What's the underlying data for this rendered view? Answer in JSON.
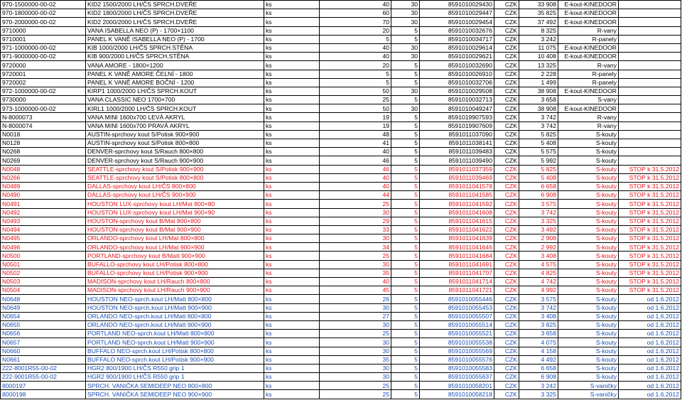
{
  "colors": {
    "black": "#000000",
    "red": "#e8141c",
    "blue": "#1a4fb8"
  },
  "rows": [
    {
      "code": "970-1500000-00-02",
      "name": "KID2 1500/2000 LH/ČS SPRCH.DVEŘE",
      "unit": "ks",
      "qty": "40",
      "pack": "30",
      "ean": "8591010029430",
      "cur": "CZK",
      "price": "33 908",
      "cat": "E-kout-KINEDOOR",
      "note": "",
      "color": "black"
    },
    {
      "code": "970-1800000-00-02",
      "name": "KID2 1800/2000 LH/ČS SPRCH.DVEŘE",
      "unit": "ks",
      "qty": "60",
      "pack": "30",
      "ean": "8591010029447",
      "cur": "CZK",
      "price": "35 825",
      "cat": "E-kout-KINEDOOR",
      "note": "",
      "color": "black"
    },
    {
      "code": "970-2000000-00-02",
      "name": "KID2 2000/2000 LH/ČS SPRCH.DVEŘE",
      "unit": "ks",
      "qty": "70",
      "pack": "30",
      "ean": "8591010029454",
      "cur": "CZK",
      "price": "37 492",
      "cat": "E-kout-KINEDOOR",
      "note": "",
      "color": "black"
    },
    {
      "code": "9710000",
      "name": "VANA ISABELLA NEO (P) - 1700×1100",
      "unit": "ks",
      "qty": "20",
      "pack": "5",
      "ean": "8591010032676",
      "cur": "CZK",
      "price": "8 325",
      "cat": "R-vany",
      "note": "",
      "color": "black"
    },
    {
      "code": "9710001",
      "name": "PANEL K VANĚ ISABELLA NEO (P) - 1700",
      "unit": "ks",
      "qty": "5",
      "pack": "5",
      "ean": "8591010034717",
      "cur": "CZK",
      "price": "3 242",
      "cat": "R-panely",
      "note": "",
      "color": "black"
    },
    {
      "code": "971-1000000-00-02",
      "name": "KIB 1000/2000 LH/ČS SPRCH.STĚNA",
      "unit": "ks",
      "qty": "40",
      "pack": "30",
      "ean": "8591010029614",
      "cur": "CZK",
      "price": "11 075",
      "cat": "E-kout-KINEDOOR",
      "note": "",
      "color": "black"
    },
    {
      "code": "971-9000000-00-02",
      "name": "KIB 900/2000 LH/ČS SPRCH.STĚNA",
      "unit": "ks",
      "qty": "40",
      "pack": "30",
      "ean": "8591010029621",
      "cur": "CZK",
      "price": "10 408",
      "cat": "E-kout-KINEDOOR",
      "note": "",
      "color": "black"
    },
    {
      "code": "9720000",
      "name": "VANA AMORE - 1800×1200",
      "unit": "ks",
      "qty": "20",
      "pack": "5",
      "ean": "8591010032690",
      "cur": "CZK",
      "price": "13 325",
      "cat": "R-vany",
      "note": "",
      "color": "black"
    },
    {
      "code": "9720001",
      "name": "PANEL K VANĚ AMORE ČELNÍ - 1800",
      "unit": "ks",
      "qty": "5",
      "pack": "5",
      "ean": "8591010026910",
      "cur": "CZK",
      "price": "2 228",
      "cat": "R-panely",
      "note": "",
      "color": "black"
    },
    {
      "code": "9720002",
      "name": "PANEL K VANĚ AMORE BOČNÍ - 1200",
      "unit": "ks",
      "qty": "5",
      "pack": "5",
      "ean": "8591010032706",
      "cur": "CZK",
      "price": "1 499",
      "cat": "R-panely",
      "note": "",
      "color": "black"
    },
    {
      "code": "972-1000000-00-02",
      "name": "KIRP1 1000/2000 LH/ČS SPRCH.KOUT",
      "unit": "ks",
      "qty": "50",
      "pack": "30",
      "ean": "8591010029508",
      "cur": "CZK",
      "price": "38 908",
      "cat": "E-kout-KINEDOOR",
      "note": "",
      "color": "black"
    },
    {
      "code": "9730000",
      "name": "VANA CLASSIC NEO 1700×700",
      "unit": "ks",
      "qty": "25",
      "pack": "5",
      "ean": "8591010032713",
      "cur": "CZK",
      "price": "3 658",
      "cat": "S-vany",
      "note": "",
      "color": "black"
    },
    {
      "code": "973-1000000-00-02",
      "name": "KIRL1 1000/2000 LH/ČS SPRCH.KOUT",
      "unit": "ks",
      "qty": "50",
      "pack": "30",
      "ean": "8591010049247",
      "cur": "CZK",
      "price": "38 908",
      "cat": "E-kout-KINEDOOR",
      "note": "",
      "color": "black"
    },
    {
      "code": "N-8000073",
      "name": "VANA MINI 1600x700 LEVÁ AKRYL",
      "unit": "ks",
      "qty": "19",
      "pack": "5",
      "ean": "8591019907593",
      "cur": "CZK",
      "price": "3 742",
      "cat": "R-vany",
      "note": "",
      "color": "black"
    },
    {
      "code": "N-8000074",
      "name": "VANA MINI 1600x700 PRAVÁ AKRYL",
      "unit": "ks",
      "qty": "19",
      "pack": "5",
      "ean": "8591019907609",
      "cur": "CZK",
      "price": "3 742",
      "cat": "R-vany",
      "note": "",
      "color": "black"
    },
    {
      "code": "N0018",
      "name": "AUSTIN-sprchovy kout S/Potisk 900×900",
      "unit": "ks",
      "qty": "48",
      "pack": "5",
      "ean": "8591011037090",
      "cur": "CZK",
      "price": "5 825",
      "cat": "S-kouty",
      "note": "",
      "color": "black"
    },
    {
      "code": "N0128",
      "name": "AUSTIN-sprchovy kout S/Potisk 800×800",
      "unit": "ks",
      "qty": "41",
      "pack": "5",
      "ean": "8591011038141",
      "cur": "CZK",
      "price": "5 408",
      "cat": "S-kouty",
      "note": "",
      "color": "black"
    },
    {
      "code": "N0268",
      "name": "DENVER-sprchovy kout S/Rauch 800×800",
      "unit": "ks",
      "qty": "40",
      "pack": "5",
      "ean": "8591011039483",
      "cur": "CZK",
      "price": "5 575",
      "cat": "S-kouty",
      "note": "",
      "color": "black"
    },
    {
      "code": "N0269",
      "name": "DENVER-sprchovy kout S/Rauch 900×900",
      "unit": "ks",
      "qty": "46",
      "pack": "5",
      "ean": "8591011039490",
      "cur": "CZK",
      "price": "5 992",
      "cat": "S-kouty",
      "note": "",
      "color": "black"
    },
    {
      "code": "N0048",
      "name": "SEATTLE-sprchovy kout S/Potisk 900×900",
      "unit": "ks",
      "qty": "46",
      "pack": "5",
      "ean": "8591011037359",
      "cur": "CZK",
      "price": "5 825",
      "cat": "S-kouty",
      "note": "STOP k 31.5.2012",
      "color": "red"
    },
    {
      "code": "N0266",
      "name": "SEATTLE-sprchovy kout S/Potisk 800×800",
      "unit": "ks",
      "qty": "40",
      "pack": "5",
      "ean": "8591011039469",
      "cur": "CZK",
      "price": "5 408",
      "cat": "S-kouty",
      "note": "STOP k 31.5.2012",
      "color": "red"
    },
    {
      "code": "N0489",
      "name": "DALLAS-sprchovy kout LH/ČS 800×800",
      "unit": "ks",
      "qty": "40",
      "pack": "5",
      "ean": "8591011041578",
      "cur": "CZK",
      "price": "6 658",
      "cat": "S-kouty",
      "note": "STOP k 31.5.2012",
      "color": "red"
    },
    {
      "code": "N0490",
      "name": "DALLAS-sprchovy kout LH/ČS 900×900",
      "unit": "ks",
      "qty": "44",
      "pack": "5",
      "ean": "8591011041585",
      "cur": "CZK",
      "price": "6 908",
      "cat": "S-kouty",
      "note": "STOP k 31.5.2012",
      "color": "red"
    },
    {
      "code": "N0491",
      "name": "HOUSTON LUX-sprchovy kout LH/Mat 800×80",
      "unit": "ks",
      "qty": "25",
      "pack": "5",
      "ean": "8591011041592",
      "cur": "CZK",
      "price": "3 575",
      "cat": "S-kouty",
      "note": "STOP k 31.5.2012",
      "color": "red"
    },
    {
      "code": "N0492",
      "name": "HOUSTON LUX-sprchovy kout LH/Mat 900×90",
      "unit": "ks",
      "qty": "30",
      "pack": "5",
      "ean": "8591011041608",
      "cur": "CZK",
      "price": "3 742",
      "cat": "S-kouty",
      "note": "STOP k 31.5.2012",
      "color": "red"
    },
    {
      "code": "N0493",
      "name": "HOUSTON-sprchovy kout B/Mat 800×800",
      "unit": "ks",
      "qty": "29",
      "pack": "5",
      "ean": "8591011041615",
      "cur": "CZK",
      "price": "3 325",
      "cat": "S-kouty",
      "note": "STOP k 31.5.2012",
      "color": "red"
    },
    {
      "code": "N0494",
      "name": "HOUSTON-sprchovy kout B/Mat 900×900",
      "unit": "ks",
      "qty": "33",
      "pack": "5",
      "ean": "8591011041622",
      "cur": "CZK",
      "price": "3 492",
      "cat": "S-kouty",
      "note": "STOP k 31.5.2012",
      "color": "red"
    },
    {
      "code": "N0495",
      "name": "ORLANDO-sprchovy kout LH/Mat 800×800",
      "unit": "ks",
      "qty": "30",
      "pack": "5",
      "ean": "8591011041639",
      "cur": "CZK",
      "price": "2 908",
      "cat": "S-kouty",
      "note": "STOP k 31.5.2012",
      "color": "red"
    },
    {
      "code": "N0496",
      "name": "ORLANDO-sprchovy kout LH/Mat 900×900",
      "unit": "ks",
      "qty": "34",
      "pack": "5",
      "ean": "8591011041646",
      "cur": "CZK",
      "price": "2 992",
      "cat": "S-kouty",
      "note": "STOP k 31.5.2012",
      "color": "red"
    },
    {
      "code": "N0500",
      "name": "PORTLAND-sprchovy kout B/Matt 900×900",
      "unit": "ks",
      "qty": "25",
      "pack": "5",
      "ean": "8591011041684",
      "cur": "CZK",
      "price": "3 408",
      "cat": "S-kouty",
      "note": "STOP k 31.5.2012",
      "color": "red"
    },
    {
      "code": "N0501",
      "name": "BUFALLO-sprchovy kout LH/Potisk 800×800",
      "unit": "ks",
      "qty": "30",
      "pack": "5",
      "ean": "8591011041691",
      "cur": "CZK",
      "price": "4 575",
      "cat": "S-kouty",
      "note": "STOP k 31.5.2012",
      "color": "red"
    },
    {
      "code": "N0502",
      "name": "BUFALLO-sprchovy kout LH/Potisk 900×900",
      "unit": "ks",
      "qty": "35",
      "pack": "5",
      "ean": "8591011041707",
      "cur": "CZK",
      "price": "4 825",
      "cat": "S-kouty",
      "note": "STOP k 31.5.2012",
      "color": "red"
    },
    {
      "code": "N0503",
      "name": "MADISON-sprchovy kout LH/Rauch 800×800",
      "unit": "ks",
      "qty": "40",
      "pack": "5",
      "ean": "8591011041714",
      "cur": "CZK",
      "price": "4 742",
      "cat": "S-kouty",
      "note": "STOP k 31.5.2012",
      "color": "red"
    },
    {
      "code": "N0504",
      "name": "MADISON-sprchovy kout LH/Rauch 900×900",
      "unit": "ks",
      "qty": "45",
      "pack": "5",
      "ean": "8591011041721",
      "cur": "CZK",
      "price": "4 992",
      "cat": "S-kouty",
      "note": "STOP k 31.5.2012",
      "color": "red"
    },
    {
      "code": "N0648",
      "name": "HOUSTON NEO-sprch.kout LH/Matt 800×800",
      "unit": "ks",
      "qty": "26",
      "pack": "5",
      "ean": "8591010055446",
      "cur": "CZK",
      "price": "3 575",
      "cat": "S-kouty",
      "note": "od 1.6.2012",
      "color": "blue"
    },
    {
      "code": "N0649",
      "name": "HOUSTON NEO-sprch.kout LH/Matt 900×900",
      "unit": "ks",
      "qty": "30",
      "pack": "5",
      "ean": "8591010055453",
      "cur": "CZK",
      "price": "3 742",
      "cat": "S-kouty",
      "note": "od 1.6.2012",
      "color": "blue"
    },
    {
      "code": "N0654",
      "name": "ORLANDO NEO-sprch.kout LH/Matt 800×800",
      "unit": "ks",
      "qty": "27",
      "pack": "5",
      "ean": "8591010055507",
      "cur": "CZK",
      "price": "3 408",
      "cat": "S-kouty",
      "note": "od 1.6.2012",
      "color": "blue"
    },
    {
      "code": "N0655",
      "name": "ORLANDO NEO-sprch.kout LH/Matt 900×900",
      "unit": "ks",
      "qty": "30",
      "pack": "5",
      "ean": "8591010055514",
      "cur": "CZK",
      "price": "3 825",
      "cat": "S-kouty",
      "note": "od 1.6.2012",
      "color": "blue"
    },
    {
      "code": "N0656",
      "name": "PORTLAND NEO-sprch.kout LH/Matt 800×800",
      "unit": "ks",
      "qty": "25",
      "pack": "5",
      "ean": "8591010055521",
      "cur": "CZK",
      "price": "3 658",
      "cat": "S-kouty",
      "note": "od 1.6.2012",
      "color": "blue"
    },
    {
      "code": "N0657",
      "name": "PORTLAND NEO-sprch.kout LH/Matt 900×900",
      "unit": "ks",
      "qty": "30",
      "pack": "5",
      "ean": "8591010055538",
      "cur": "CZK",
      "price": "4 075",
      "cat": "S-kouty",
      "note": "od 1.6.2012",
      "color": "blue"
    },
    {
      "code": "N0660",
      "name": "BUFFALO NEO-sprch.kout LH/Potisk 800×800",
      "unit": "ks",
      "qty": "30",
      "pack": "5",
      "ean": "8591010055569",
      "cur": "CZK",
      "price": "4 158",
      "cat": "S-kouty",
      "note": "od 1.6.2012",
      "color": "blue"
    },
    {
      "code": "N0661",
      "name": "BUFFALO NEO-sprch.kout LH/Potisk 900×900",
      "unit": "ks",
      "qty": "35",
      "pack": "5",
      "ean": "8591010055576",
      "cur": "CZK",
      "price": "4 492",
      "cat": "S-kouty",
      "note": "od 1.6.2012",
      "color": "blue"
    },
    {
      "code": "222-8001R55-00-02",
      "name": "HGR2 800/1900 LH/ČS R550 grip 1",
      "unit": "ks",
      "qty": "30",
      "pack": "5",
      "ean": "8591010055583",
      "cur": "CZK",
      "price": "6 658",
      "cat": "S-kouty",
      "note": "od 1.6.2012",
      "color": "blue"
    },
    {
      "code": "222-9001R55-00-02",
      "name": "HGR2 900/1900 LH/ČS R550 grip 1",
      "unit": "ks",
      "qty": "30",
      "pack": "5",
      "ean": "8591010055637",
      "cur": "CZK",
      "price": "6 908",
      "cat": "S-kouty",
      "note": "od 1.6.2012",
      "color": "blue"
    },
    {
      "code": "8000197",
      "name": "SPRCH. VANIČKA SEMIDEEP NEO 800×800",
      "unit": "ks",
      "qty": "25",
      "pack": "5",
      "ean": "8591010058201",
      "cur": "CZK",
      "price": "3 242",
      "cat": "S-vaničky",
      "note": "od 1.6.2012",
      "color": "blue"
    },
    {
      "code": "8000198",
      "name": "SPRCH. VANIČKA SEMIDEEP NEO 900×900",
      "unit": "ks",
      "qty": "25",
      "pack": "5",
      "ean": "8591010058218",
      "cur": "CZK",
      "price": "3 325",
      "cat": "S-vaničky",
      "note": "od 1.6.2012",
      "color": "blue"
    }
  ]
}
